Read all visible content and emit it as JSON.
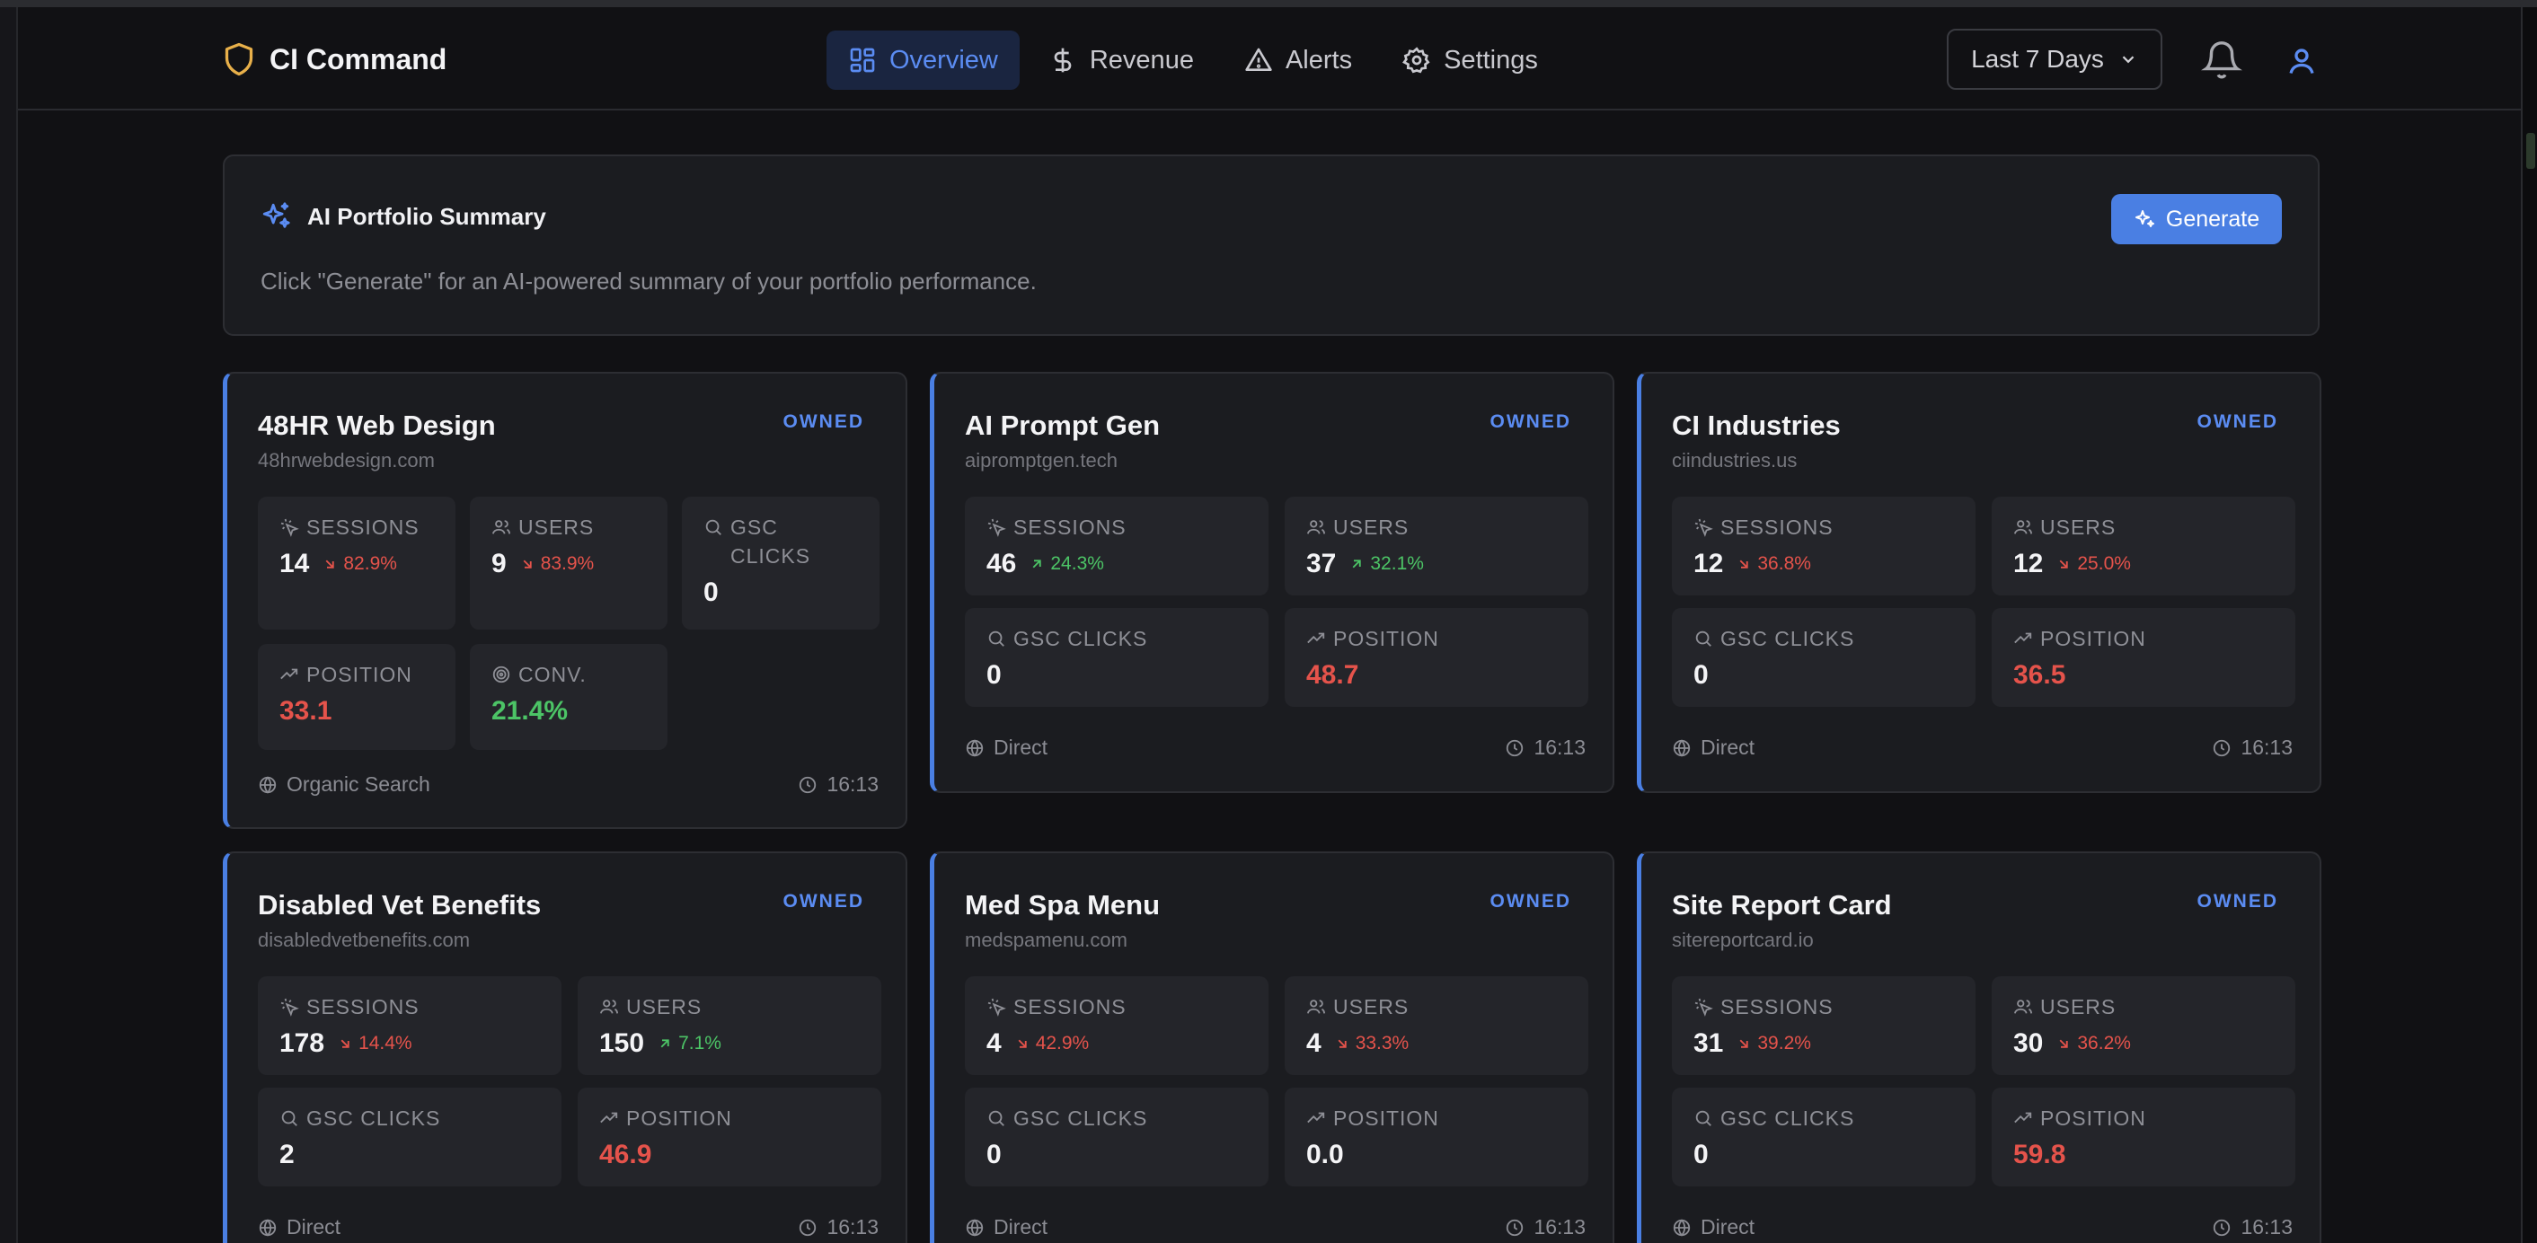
{
  "brand": {
    "name": "CI Command",
    "icon": "shield-icon"
  },
  "nav": [
    {
      "label": "Overview",
      "icon": "dashboard-icon",
      "active": true
    },
    {
      "label": "Revenue",
      "icon": "dollar-icon",
      "active": false
    },
    {
      "label": "Alerts",
      "icon": "alert-triangle-icon",
      "active": false
    },
    {
      "label": "Settings",
      "icon": "gear-icon",
      "active": false
    }
  ],
  "date_range": {
    "label": "Last 7 Days"
  },
  "ai_summary": {
    "title": "AI Portfolio Summary",
    "text": "Click \"Generate\" for an AI-powered summary of your portfolio performance.",
    "button": "Generate"
  },
  "colors": {
    "accent": "#4a7fe3",
    "red": "#e5534b",
    "green": "#4cc466",
    "card": "#1b1c20",
    "tile": "#24252a"
  },
  "labels": {
    "sessions": "SESSIONS",
    "users": "USERS",
    "gsc_clicks": "GSC CLICKS",
    "position": "POSITION",
    "conv": "CONV."
  },
  "sites": [
    {
      "name": "48HR Web Design",
      "domain": "48hrwebdesign.com",
      "badge": "OWNED",
      "sessions": "14",
      "sessions_change": "82.9%",
      "sessions_dir": "down",
      "users": "9",
      "users_change": "83.9%",
      "users_dir": "down",
      "gsc_clicks": "0",
      "position": "33.1",
      "conv": "21.4%",
      "source": "Organic Search",
      "time": "16:13"
    },
    {
      "name": "AI Prompt Gen",
      "domain": "aipromptgen.tech",
      "badge": "OWNED",
      "sessions": "46",
      "sessions_change": "24.3%",
      "sessions_dir": "up",
      "users": "37",
      "users_change": "32.1%",
      "users_dir": "up",
      "gsc_clicks": "0",
      "position": "48.7",
      "source": "Direct",
      "time": "16:13"
    },
    {
      "name": "CI Industries",
      "domain": "ciindustries.us",
      "badge": "OWNED",
      "sessions": "12",
      "sessions_change": "36.8%",
      "sessions_dir": "down",
      "users": "12",
      "users_change": "25.0%",
      "users_dir": "down",
      "gsc_clicks": "0",
      "position": "36.5",
      "source": "Direct",
      "time": "16:13"
    },
    {
      "name": "Disabled Vet Benefits",
      "domain": "disabledvetbenefits.com",
      "badge": "OWNED",
      "sessions": "178",
      "sessions_change": "14.4%",
      "sessions_dir": "down",
      "users": "150",
      "users_change": "7.1%",
      "users_dir": "up",
      "gsc_clicks": "2",
      "position": "46.9",
      "source": "Direct",
      "time": "16:13"
    },
    {
      "name": "Med Spa Menu",
      "domain": "medspamenu.com",
      "badge": "OWNED",
      "sessions": "4",
      "sessions_change": "42.9%",
      "sessions_dir": "down",
      "users": "4",
      "users_change": "33.3%",
      "users_dir": "down",
      "gsc_clicks": "0",
      "position": "0.0",
      "source": "Direct",
      "time": "16:13"
    },
    {
      "name": "Site Report Card",
      "domain": "sitereportcard.io",
      "badge": "OWNED",
      "sessions": "31",
      "sessions_change": "39.2%",
      "sessions_dir": "down",
      "users": "30",
      "users_change": "36.2%",
      "users_dir": "down",
      "gsc_clicks": "0",
      "position": "59.8",
      "source": "Direct",
      "time": "16:13"
    }
  ]
}
